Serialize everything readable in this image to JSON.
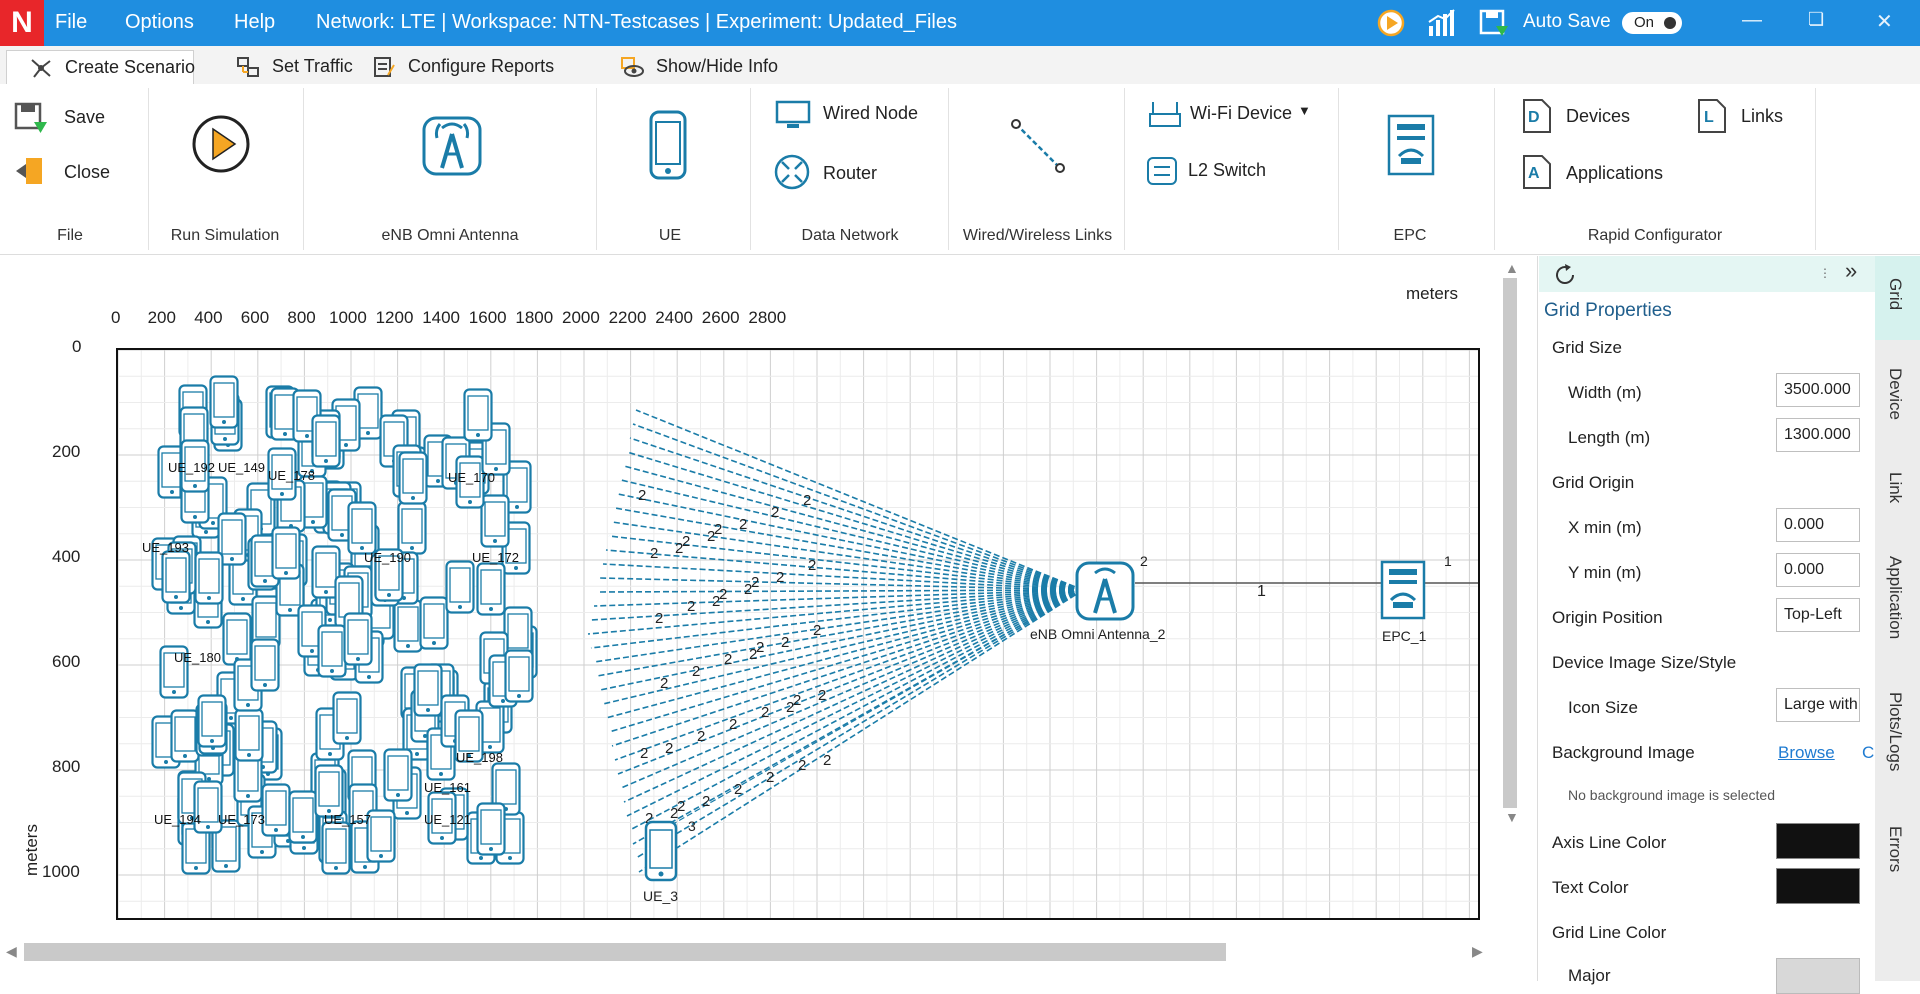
{
  "app": {
    "logo_letter": "N",
    "menus": [
      "File",
      "Options",
      "Help"
    ],
    "title": "Network: LTE | Workspace: NTN-Testcases | Experiment: Updated_Files",
    "autosave_label": "Auto Save",
    "autosave_state": "On",
    "window_buttons": [
      "minimize-icon",
      "restore-icon",
      "close-icon"
    ]
  },
  "tabs": [
    {
      "label": "Create Scenario",
      "active": true
    },
    {
      "label": "Set Traffic",
      "active": false
    },
    {
      "label": "Configure Reports",
      "active": false
    },
    {
      "label": "Show/Hide Info",
      "active": false
    }
  ],
  "ribbon": {
    "file": {
      "save": "Save",
      "close": "Close",
      "group": "File"
    },
    "run": {
      "group": "Run Simulation"
    },
    "enb": {
      "group": "eNB Omni Antenna"
    },
    "ue": {
      "group": "UE"
    },
    "data_network": {
      "wired_node": "Wired Node",
      "router": "Router",
      "group": "Data Network"
    },
    "links": {
      "group": "Wired/Wireless Links"
    },
    "wifi": {
      "wifi_device": "Wi-Fi Device",
      "l2_switch": "L2 Switch"
    },
    "epc": {
      "group": "EPC"
    },
    "rapid": {
      "devices": "Devices",
      "links": "Links",
      "applications": "Applications",
      "group": "Rapid Configurator"
    }
  },
  "canvas": {
    "x_unit": "meters",
    "y_unit": "meters",
    "x_ticks": [
      "0",
      "200",
      "400",
      "600",
      "800",
      "1000",
      "1200",
      "1400",
      "1600",
      "1800",
      "2000",
      "2200",
      "2400",
      "2600",
      "2800"
    ],
    "y_ticks": [
      "0",
      "200",
      "400",
      "600",
      "800",
      "1000"
    ],
    "enb_label": "eNB Omni Antenna_2",
    "enb_port": "2",
    "epc_label": "EPC_1",
    "epc_port": "1",
    "link_label": "1",
    "ue_labels": [
      "UE_3",
      "UE_194",
      "UE_173",
      "UE_157",
      "UE_121",
      "UE_198",
      "UE_180",
      "UE_193",
      "UE_190",
      "UE_172",
      "UE_161",
      "UE_192",
      "UE_149",
      "UE_178",
      "UE_170"
    ],
    "ue3_link_label": "3",
    "beam_label": "2"
  },
  "properties": {
    "title": "Grid Properties",
    "grid_size": "Grid Size",
    "width_label": "Width (m)",
    "width_value": "3500.000",
    "length_label": "Length (m)",
    "length_value": "1300.000",
    "grid_origin": "Grid Origin",
    "xmin_label": "X min (m)",
    "xmin_value": "0.000",
    "ymin_label": "Y min (m)",
    "ymin_value": "0.000",
    "origin_position_label": "Origin Position",
    "origin_position_value": "Top-Left",
    "image_size_label": "Device Image Size/Style",
    "icon_size_label": "Icon Size",
    "icon_size_value": "Large with",
    "background_image_label": "Background Image",
    "browse_label": "Browse",
    "clear_label": "C",
    "no_background": "No background image is selected",
    "axis_line_color": "Axis Line Color",
    "text_color": "Text Color",
    "grid_line_color": "Grid Line Color",
    "major_label": "Major"
  },
  "side_tabs": [
    "Grid",
    "Device",
    "Link",
    "Application",
    "Plots/Logs",
    "Errors"
  ]
}
